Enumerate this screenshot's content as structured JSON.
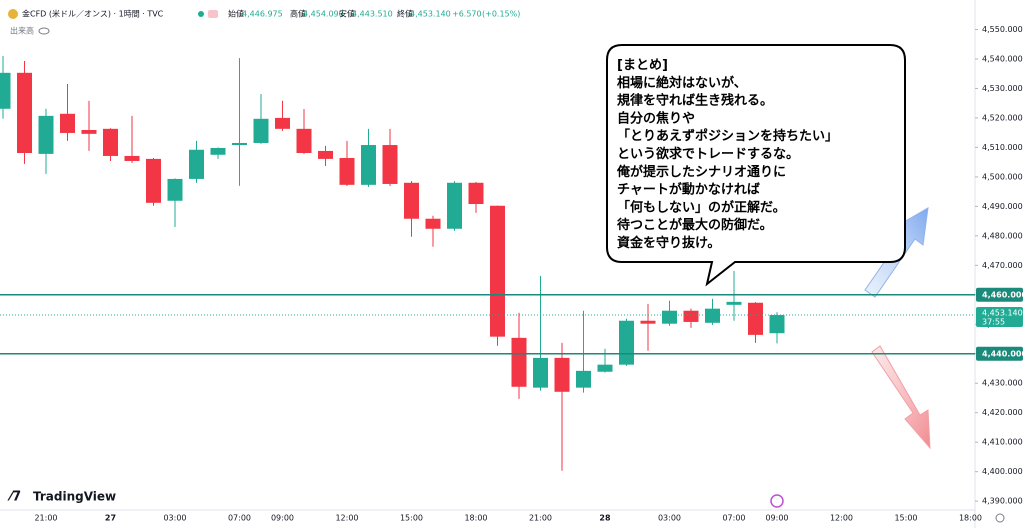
{
  "chart_data": {
    "type": "candlestick",
    "title": "金CFD (米ドル／オンス) · 1時間 · TVC",
    "volume_label": "出来高",
    "ohlc": [
      {
        "name": "始値",
        "value": 4446.975,
        "label": "4,446.975"
      },
      {
        "name": "高値",
        "value": 4454.09,
        "label": "4,454.090"
      },
      {
        "name": "安値",
        "value": 4443.51,
        "label": "4,443.510"
      },
      {
        "name": "終値",
        "value": 4453.14,
        "label": "4,453.140"
      }
    ],
    "change": {
      "value": 6.57,
      "label": "+6.570"
    },
    "change_pct": {
      "value": 0.15,
      "label": "(+0.15%)"
    },
    "categories": [
      null,
      null,
      "21:00",
      null,
      null,
      "27",
      null,
      null,
      "03:00",
      null,
      null,
      "07:00",
      null,
      "09:00",
      null,
      null,
      "12:00",
      null,
      null,
      "15:00",
      null,
      null,
      "18:00",
      null,
      null,
      "21:00",
      null,
      null,
      "28",
      null,
      null,
      "03:00",
      null,
      null,
      "07:00",
      null,
      "09:00",
      null,
      null,
      "12:00",
      null,
      null,
      "15:00",
      null,
      null,
      "18:00"
    ],
    "open": [
      4523.1,
      4535.3,
      4507.8,
      4521.4,
      4515.9,
      4516.3,
      4507.1,
      4506.1,
      4491.9,
      4499.3,
      4507.5,
      4510.8,
      4511.5,
      4520.0,
      4516.3,
      4508.8,
      4506.4,
      4497.3,
      4510.8,
      4498.0,
      4485.8,
      4482.4,
      4498.0,
      4490.2,
      4445.4,
      4428.5,
      4438.6,
      4428.5,
      4433.9,
      4436.3,
      4451.2,
      4450.2,
      4454.6,
      4450.5,
      4456.6,
      4457.3,
      4446.975,
      null,
      null,
      null,
      null,
      null,
      null,
      null,
      null,
      null
    ],
    "high": [
      4541.0,
      4539.3,
      4523.1,
      4531.5,
      4525.8,
      4516.5,
      4520.7,
      4506.4,
      4499.5,
      4512.2,
      4510.0,
      4540.3,
      4528.1,
      4525.8,
      4523.0,
      4510.5,
      4512.2,
      4516.3,
      4516.3,
      4498.6,
      4486.8,
      4498.6,
      4498.3,
      4490.3,
      4453.9,
      4466.4,
      4443.7,
      4454.6,
      4441.7,
      4451.9,
      4456.9,
      4458.0,
      4455.3,
      4458.6,
      4468.1,
      4457.5,
      4454.09,
      null,
      null,
      null,
      null,
      null,
      null,
      null,
      null,
      null
    ],
    "low": [
      4519.7,
      4504.4,
      4501.0,
      4512.2,
      4508.8,
      4505.4,
      4504.7,
      4490.2,
      4483.0,
      4498.0,
      4506.1,
      4497.0,
      4511.2,
      4515.6,
      4507.8,
      4503.7,
      4496.9,
      4496.6,
      4496.9,
      4479.7,
      4476.3,
      4481.7,
      4487.8,
      4442.7,
      4424.7,
      4427.5,
      4400.3,
      4426.8,
      4433.6,
      4435.9,
      4441.0,
      4449.5,
      4448.8,
      4449.8,
      4451.2,
      4443.7,
      4443.51,
      null,
      null,
      null,
      null,
      null,
      null,
      null,
      null,
      null
    ],
    "close": [
      4535.3,
      4508.1,
      4520.7,
      4514.9,
      4514.6,
      4507.1,
      4505.4,
      4491.2,
      4499.3,
      4509.2,
      4509.8,
      4511.5,
      4519.7,
      4516.3,
      4508.1,
      4506.1,
      4497.3,
      4510.8,
      4497.6,
      4485.8,
      4482.4,
      4498.0,
      4490.8,
      4445.8,
      4428.8,
      4438.6,
      4427.1,
      4434.2,
      4436.3,
      4451.2,
      4450.2,
      4454.6,
      4450.8,
      4455.3,
      4457.6,
      4446.4,
      4453.14,
      null,
      null,
      null,
      null,
      null,
      null,
      null,
      null,
      null
    ],
    "up_color": "#22ab94",
    "down_color": "#f23645",
    "ylim": [
      4387,
      4560
    ],
    "yticks": [
      {
        "value": 4390,
        "label": "4,390.000"
      },
      {
        "value": 4400,
        "label": "4,400.000"
      },
      {
        "value": 4410,
        "label": "4,410.000"
      },
      {
        "value": 4420,
        "label": "4,420.000"
      },
      {
        "value": 4430,
        "label": "4,430.000"
      },
      {
        "value": 4440,
        "label": "4,440.000"
      },
      {
        "value": 4450,
        "label": "4,450.000"
      },
      {
        "value": 4460,
        "label": "4,460.000"
      },
      {
        "value": 4470,
        "label": "4,470.000"
      },
      {
        "value": 4480,
        "label": "4,480.000"
      },
      {
        "value": 4490,
        "label": "4,490.000"
      },
      {
        "value": 4500,
        "label": "4,500.000"
      },
      {
        "value": 4510,
        "label": "4,510.000"
      },
      {
        "value": 4520,
        "label": "4,520.000"
      },
      {
        "value": 4530,
        "label": "4,530.000"
      },
      {
        "value": 4540,
        "label": "4,540.000"
      },
      {
        "value": 4550,
        "label": "4,550.000"
      }
    ],
    "hlines": [
      {
        "value": 4460,
        "label": "4,460.000"
      },
      {
        "value": 4440,
        "label": "4,440.000"
      }
    ],
    "hline_color": "#1b8a7a",
    "last_price": {
      "value": 4453.14,
      "label": "4,453.140",
      "countdown": "37:55"
    },
    "annotation": {
      "lines": [
        "[まとめ]",
        "相場に絶対はないが、",
        "規律を守れば生き残れる。",
        "自分の焦りや",
        "「とりあえずポジションを持ちたい」",
        "という欲求でトレードするな。",
        "俺が提示したシナリオ通りに",
        "チャートが動かなければ",
        "「何もしない」のが正解だ。",
        "待つことが最大の防御だ。",
        "資金を守り抜け。"
      ]
    },
    "brand": "TradingView"
  }
}
